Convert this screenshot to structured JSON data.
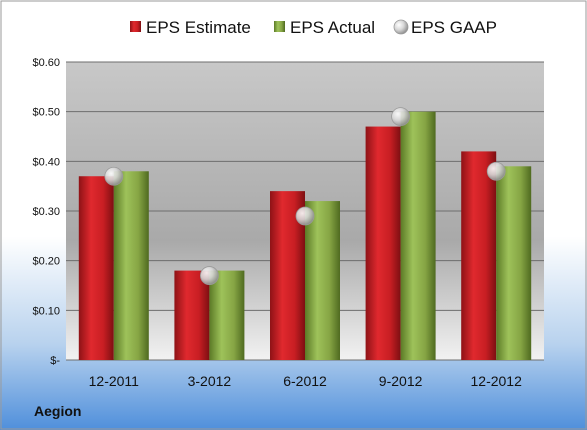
{
  "chart_data": {
    "type": "bar",
    "categories": [
      "12-2011",
      "3-2012",
      "6-2012",
      "9-2012",
      "12-2012"
    ],
    "series": [
      {
        "name": "EPS Estimate",
        "values": [
          0.37,
          0.18,
          0.34,
          0.47,
          0.42
        ],
        "color": "#d9262b"
      },
      {
        "name": "EPS Actual",
        "values": [
          0.38,
          0.18,
          0.32,
          0.5,
          0.39
        ],
        "color": "#8fb04a"
      },
      {
        "name": "EPS GAAP",
        "values": [
          0.37,
          0.17,
          0.29,
          0.49,
          0.38
        ],
        "color": "#c8c8c8",
        "marker": "circle"
      }
    ],
    "yticks": [
      "$-",
      "$0.10",
      "$0.20",
      "$0.30",
      "$0.40",
      "$0.50",
      "$0.60"
    ],
    "ylim": [
      0,
      0.6
    ],
    "grid": true,
    "legend_position": "top"
  },
  "company": "Aegion"
}
